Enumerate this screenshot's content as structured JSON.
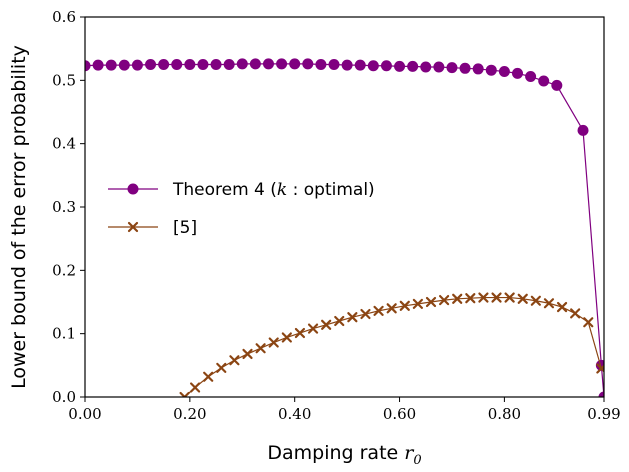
{
  "chart_data": {
    "type": "line",
    "xlabel": "Damping rate r0",
    "xlabel_parts": {
      "text": "Damping rate ",
      "var": "r",
      "sub": "0"
    },
    "ylabel": "Lower bound of the error probability",
    "xlim": [
      0,
      0.99
    ],
    "ylim": [
      0,
      0.6
    ],
    "xticks": [
      0,
      0.2,
      0.4,
      0.6,
      0.8,
      0.99
    ],
    "xtick_labels": [
      "0.00",
      "0.20",
      "0.40",
      "0.60",
      "0.80",
      "0.99"
    ],
    "yticks": [
      0,
      0.1,
      0.2,
      0.3,
      0.4,
      0.5,
      0.6
    ],
    "ytick_labels": [
      "0.0",
      "0.1",
      "0.2",
      "0.3",
      "0.4",
      "0.5",
      "0.6"
    ],
    "grid": false,
    "legend_position": "center-left",
    "series": [
      {
        "name": "Theorem 4 (k : optimal)",
        "legend_parts": {
          "pre": "Theorem 4 (",
          "var": "k",
          "post": " : optimal)"
        },
        "color": "#800080",
        "marker": "circle",
        "x": [
          0.0,
          0.025,
          0.05,
          0.075,
          0.1,
          0.125,
          0.15,
          0.175,
          0.2,
          0.225,
          0.25,
          0.275,
          0.3,
          0.325,
          0.35,
          0.375,
          0.4,
          0.425,
          0.45,
          0.475,
          0.5,
          0.525,
          0.55,
          0.575,
          0.6,
          0.625,
          0.65,
          0.675,
          0.7,
          0.725,
          0.75,
          0.775,
          0.8,
          0.825,
          0.85,
          0.875,
          0.9,
          0.95,
          0.985,
          0.99
        ],
        "y": [
          0.523,
          0.524,
          0.524,
          0.524,
          0.524,
          0.525,
          0.525,
          0.525,
          0.525,
          0.525,
          0.525,
          0.525,
          0.526,
          0.526,
          0.526,
          0.526,
          0.526,
          0.526,
          0.525,
          0.525,
          0.524,
          0.524,
          0.523,
          0.523,
          0.522,
          0.522,
          0.521,
          0.521,
          0.52,
          0.519,
          0.518,
          0.516,
          0.514,
          0.511,
          0.506,
          0.499,
          0.492,
          0.421,
          0.05,
          0.0
        ]
      },
      {
        "name": "[5]",
        "color": "#8B4513",
        "marker": "x",
        "x": [
          0.19,
          0.21,
          0.235,
          0.26,
          0.285,
          0.31,
          0.335,
          0.36,
          0.385,
          0.41,
          0.435,
          0.46,
          0.485,
          0.51,
          0.535,
          0.56,
          0.585,
          0.61,
          0.635,
          0.66,
          0.685,
          0.71,
          0.735,
          0.76,
          0.785,
          0.81,
          0.835,
          0.86,
          0.885,
          0.91,
          0.935,
          0.96,
          0.985
        ],
        "y": [
          0.0,
          0.015,
          0.032,
          0.046,
          0.058,
          0.068,
          0.077,
          0.086,
          0.094,
          0.101,
          0.108,
          0.114,
          0.12,
          0.126,
          0.131,
          0.136,
          0.14,
          0.144,
          0.147,
          0.15,
          0.153,
          0.155,
          0.156,
          0.157,
          0.157,
          0.157,
          0.155,
          0.152,
          0.148,
          0.142,
          0.132,
          0.118,
          0.045
        ]
      }
    ]
  }
}
